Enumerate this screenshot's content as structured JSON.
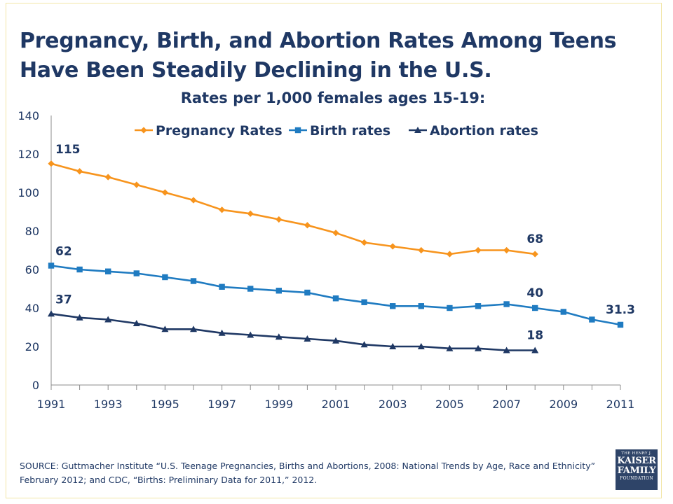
{
  "slide": {
    "title": "Pregnancy, Birth, and Abortion Rates Among Teens Have Been Steadily Declining in the U.S.",
    "subtitle": "Rates per 1,000 females ages 15-19:",
    "source_line1": "SOURCE: Guttmacher Institute “U.S. Teenage Pregnancies, Births and Abortions, 2008: National Trends by Age, Race and Ethnicity”",
    "source_line2": "February 2012; and CDC, “Births: Preliminary Data for 2011,” 2012.",
    "logo": {
      "line1": "THE HENRY J.",
      "line2": "KAISER",
      "line3": "FAMILY",
      "line4": "FOUNDATION"
    }
  },
  "chart_data": {
    "type": "line",
    "title": "Rates per 1,000 females ages 15-19:",
    "xlabel": "",
    "ylabel": "",
    "xlim": [
      1991,
      2011
    ],
    "ylim": [
      0,
      140
    ],
    "y_ticks": [
      0,
      20,
      40,
      60,
      80,
      100,
      120,
      140
    ],
    "x_ticks": [
      1991,
      1993,
      1995,
      1997,
      1999,
      2001,
      2003,
      2005,
      2007,
      2009,
      2011
    ],
    "grid": false,
    "legend_position": "top",
    "series": [
      {
        "name": "Pregnancy Rates",
        "color": "#f7941d",
        "marker": "diamond",
        "x": [
          1991,
          1992,
          1993,
          1994,
          1995,
          1996,
          1997,
          1998,
          1999,
          2000,
          2001,
          2002,
          2003,
          2004,
          2005,
          2006,
          2007,
          2008
        ],
        "y": [
          115,
          111,
          108,
          104,
          100,
          96,
          91,
          89,
          86,
          83,
          79,
          74,
          72,
          70,
          68,
          70,
          70,
          68
        ]
      },
      {
        "name": "Birth rates",
        "color": "#1f7bc1",
        "marker": "square",
        "x": [
          1991,
          1992,
          1993,
          1994,
          1995,
          1996,
          1997,
          1998,
          1999,
          2000,
          2001,
          2002,
          2003,
          2004,
          2005,
          2006,
          2007,
          2008,
          2009,
          2010,
          2011
        ],
        "y": [
          62,
          60,
          59,
          58,
          56,
          54,
          51,
          50,
          49,
          48,
          45,
          43,
          41,
          41,
          40,
          41,
          42,
          40,
          38,
          34,
          31.3
        ]
      },
      {
        "name": "Abortion rates",
        "color": "#1f3864",
        "marker": "triangle",
        "x": [
          1991,
          1992,
          1993,
          1994,
          1995,
          1996,
          1997,
          1998,
          1999,
          2000,
          2001,
          2002,
          2003,
          2004,
          2005,
          2006,
          2007,
          2008
        ],
        "y": [
          37,
          35,
          34,
          32,
          29,
          29,
          27,
          26,
          25,
          24,
          23,
          21,
          20,
          20,
          19,
          19,
          18,
          18
        ]
      }
    ],
    "annotations": [
      {
        "text": "115",
        "x": 1991,
        "y": 115,
        "position": "above-right"
      },
      {
        "text": "68",
        "x": 2008,
        "y": 68,
        "position": "above"
      },
      {
        "text": "62",
        "x": 1991,
        "y": 62,
        "position": "above-right"
      },
      {
        "text": "40",
        "x": 2008,
        "y": 40,
        "position": "above"
      },
      {
        "text": "31.3",
        "x": 2011,
        "y": 31.3,
        "position": "above"
      },
      {
        "text": "37",
        "x": 1991,
        "y": 37,
        "position": "above-right"
      },
      {
        "text": "18",
        "x": 2008,
        "y": 18,
        "position": "above"
      }
    ]
  }
}
